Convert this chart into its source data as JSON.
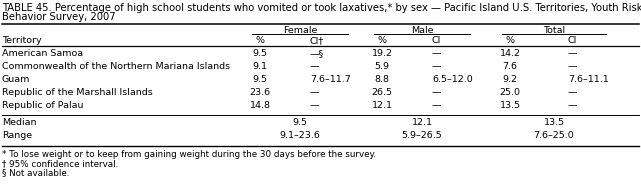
{
  "title_line1": "TABLE 45. Percentage of high school students who vomited or took laxatives,* by sex — Pacific Island U.S. Territories, Youth Risk",
  "title_line2": "Behavior Survey, 2007",
  "col_groups": [
    "Female",
    "Male",
    "Total"
  ],
  "col_headers_left": "Territory",
  "col_headers_pct": [
    "%",
    "%",
    "%"
  ],
  "col_headers_ci": [
    "CI†",
    "CI",
    "CI"
  ],
  "rows": [
    [
      "American Samoa",
      "9.5",
      "—§",
      "19.2",
      "—",
      "14.2",
      "—"
    ],
    [
      "Commonwealth of the Northern Mariana Islands",
      "9.1",
      "—",
      "5.9",
      "—",
      "7.6",
      "—"
    ],
    [
      "Guam",
      "9.5",
      "7.6–11.7",
      "8.8",
      "6.5–12.0",
      "9.2",
      "7.6–11.1"
    ],
    [
      "Republic of the Marshall Islands",
      "23.6",
      "—",
      "26.5",
      "—",
      "25.0",
      "—"
    ],
    [
      "Republic of Palau",
      "14.8",
      "—",
      "12.1",
      "—",
      "13.5",
      "—"
    ]
  ],
  "summary_rows": [
    [
      "Median",
      "9.5",
      "12.1",
      "13.5"
    ],
    [
      "Range",
      "9.1–23.6",
      "5.9–26.5",
      "7.6–25.0"
    ]
  ],
  "footnotes": [
    "* To lose weight or to keep from gaining weight during the 30 days before the survey.",
    "† 95% confidence interval.",
    "§ Not available."
  ],
  "bg_color": "#ffffff",
  "text_color": "#000000",
  "fs_title": 7.2,
  "fs_body": 6.8,
  "fs_footnote": 6.3
}
